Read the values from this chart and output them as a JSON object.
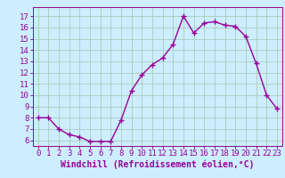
{
  "x": [
    0,
    1,
    2,
    3,
    4,
    5,
    6,
    7,
    8,
    9,
    10,
    11,
    12,
    13,
    14,
    15,
    16,
    17,
    18,
    19,
    20,
    21,
    22,
    23
  ],
  "y": [
    8.0,
    8.0,
    7.0,
    6.5,
    6.3,
    5.9,
    5.9,
    5.9,
    7.8,
    10.4,
    11.8,
    12.7,
    13.3,
    14.5,
    17.0,
    15.5,
    16.4,
    16.5,
    16.2,
    16.1,
    15.2,
    12.8,
    10.0,
    8.8
  ],
  "line_color": "#990099",
  "marker": "+",
  "marker_size": 4,
  "marker_lw": 1.0,
  "line_width": 1.0,
  "bg_color": "#cceeff",
  "grid_color": "#aaccbb",
  "xlabel": "Windchill (Refroidissement éolien,°C)",
  "xlabel_fontsize": 7,
  "tick_fontsize": 6.5,
  "ylim": [
    5.5,
    17.8
  ],
  "yticks": [
    6,
    7,
    8,
    9,
    10,
    11,
    12,
    13,
    14,
    15,
    16,
    17
  ],
  "xlim": [
    -0.5,
    23.5
  ],
  "xticks": [
    0,
    1,
    2,
    3,
    4,
    5,
    6,
    7,
    8,
    9,
    10,
    11,
    12,
    13,
    14,
    15,
    16,
    17,
    18,
    19,
    20,
    21,
    22,
    23
  ]
}
